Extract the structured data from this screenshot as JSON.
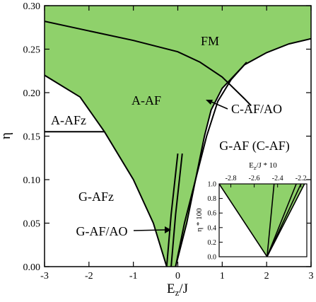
{
  "chart_data": [
    {
      "type": "area",
      "title": "",
      "xlabel": "E",
      "xlabel_sub": "z",
      "xlabel_tail": "/J",
      "ylabel": "η",
      "xlim": [
        -3,
        3
      ],
      "ylim": [
        0,
        0.3
      ],
      "xticks": [
        -3,
        -2,
        -1,
        0,
        1,
        2,
        3
      ],
      "xtick_labels": [
        "-3",
        "-2",
        "-1",
        "0",
        "1",
        "2",
        "3"
      ],
      "yticks": [
        0,
        0.05,
        0.1,
        0.15,
        0.2,
        0.25,
        0.3
      ],
      "ytick_labels": [
        "0.00",
        "0.05",
        "0.10",
        "0.15",
        "0.20",
        "0.25",
        "0.30"
      ],
      "fill_color": "#8fd16b",
      "line_color": "#000000",
      "region_labels": {
        "fm": "FM",
        "a_af": "A-AF",
        "a_afz": "A-AFz",
        "g_afz": "G-AFz",
        "g_af_c_af": "G-AF (C-AF)",
        "c_af_ao": "C-AF/AO",
        "g_af_ao": "G-AF/AO"
      },
      "boundaries": [
        {
          "id": "fm-aaf",
          "points": [
            [
              -3,
              0.282
            ],
            [
              -2,
              0.271
            ],
            [
              -1,
              0.26
            ],
            [
              0,
              0.247
            ],
            [
              0.5,
              0.235
            ],
            [
              1,
              0.218
            ],
            [
              1.5,
              0.193
            ],
            [
              1.65,
              0.185
            ]
          ]
        },
        {
          "id": "green-upper-right",
          "points": [
            [
              -0.05,
              0.0
            ],
            [
              0.2,
              0.05
            ],
            [
              0.4,
              0.1
            ],
            [
              0.6,
              0.15
            ],
            [
              0.75,
              0.18
            ],
            [
              1,
              0.205
            ],
            [
              1.5,
              0.232
            ],
            [
              2,
              0.246
            ],
            [
              2.5,
              0.256
            ],
            [
              3,
              0.262
            ]
          ]
        },
        {
          "id": "cafao-gaf",
          "points": [
            [
              -0.05,
              0.0
            ],
            [
              0.15,
              0.05
            ],
            [
              0.4,
              0.1
            ],
            [
              0.65,
              0.15
            ],
            [
              0.9,
              0.19
            ],
            [
              1.2,
              0.215
            ],
            [
              1.55,
              0.235
            ]
          ]
        },
        {
          "id": "gafz-green",
          "points": [
            [
              -3,
              0.22
            ],
            [
              -2.2,
              0.195
            ],
            [
              -1.65,
              0.155
            ],
            [
              -1.0,
              0.1
            ],
            [
              -0.55,
              0.05
            ],
            [
              -0.25,
              0.0
            ]
          ]
        },
        {
          "id": "aafz-lower",
          "points": [
            [
              -3,
              0.155
            ],
            [
              -1.65,
              0.155
            ]
          ]
        },
        {
          "id": "gafao-1",
          "points": [
            [
              -0.25,
              0.0
            ],
            [
              -0.15,
              0.06
            ],
            [
              0.0,
              0.13
            ]
          ]
        },
        {
          "id": "gafao-2",
          "points": [
            [
              -0.15,
              0.0
            ],
            [
              -0.05,
              0.06
            ],
            [
              0.1,
              0.13
            ]
          ]
        }
      ],
      "annotations": [
        {
          "label": "C-AF/AO",
          "arrow_to": [
            0.68,
            0.2
          ]
        },
        {
          "label": "G-AF/AO",
          "arrow_to": [
            -0.18,
            0.045
          ]
        }
      ]
    },
    {
      "type": "area",
      "title": "",
      "xlabel": "E",
      "xlabel_sub": "z",
      "xlabel_tail": "/J * 10",
      "ylabel": "η * 100",
      "xlim": [
        -2.9,
        -2.15
      ],
      "ylim": [
        0,
        1.0
      ],
      "xticks": [
        -2.8,
        -2.6,
        -2.4,
        -2.2
      ],
      "xtick_labels": [
        "-2.8",
        "-2.6",
        "-2.4",
        "-2.2"
      ],
      "yticks": [
        0,
        0.2,
        0.4,
        0.6,
        0.8,
        1.0
      ],
      "ytick_labels": [
        "0.0",
        "0.2",
        "0.4",
        "0.6",
        "0.8",
        "1.0"
      ],
      "fill_region": {
        "points": [
          [
            -2.9,
            1.0
          ],
          [
            -2.49,
            0.0
          ],
          [
            -2.17,
            1.0
          ]
        ]
      },
      "boundaries": [
        {
          "id": "inset-left",
          "points": [
            [
              -2.9,
              1.0
            ],
            [
              -2.49,
              0.0
            ]
          ]
        },
        {
          "id": "inset-mid",
          "points": [
            [
              -2.49,
              0.0
            ],
            [
              -2.43,
              1.0
            ]
          ]
        },
        {
          "id": "inset-right-1",
          "points": [
            [
              -2.49,
              0.0
            ],
            [
              -2.24,
              1.0
            ]
          ]
        },
        {
          "id": "inset-right-2",
          "points": [
            [
              -2.49,
              0.0
            ],
            [
              -2.2,
              1.0
            ]
          ]
        },
        {
          "id": "inset-right-3",
          "points": [
            [
              -2.49,
              0.0
            ],
            [
              -2.17,
              1.0
            ]
          ]
        }
      ]
    }
  ]
}
